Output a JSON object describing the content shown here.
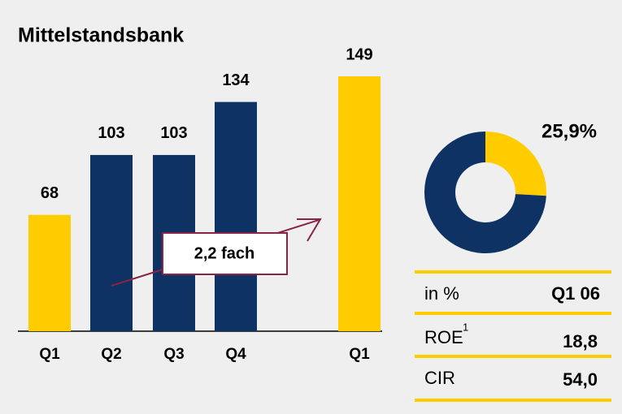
{
  "title": "Mittelstandsbank",
  "chart_data": [
    {
      "type": "bar",
      "categories": [
        "Q1",
        "Q2",
        "Q3",
        "Q4",
        "Q1"
      ],
      "values": [
        68,
        103,
        103,
        134,
        149
      ],
      "colors": [
        "#ffcc00",
        "#0e3263",
        "#0e3263",
        "#0e3263",
        "#ffcc00"
      ],
      "annotation": "2,2 fach"
    },
    {
      "type": "pie",
      "donut": true,
      "values": [
        25.9,
        74.1
      ],
      "value_labels": [
        "25,9%",
        null
      ],
      "colors": [
        "#ffcc00",
        "#0e3263"
      ]
    }
  ],
  "table": {
    "header": [
      "in %",
      "Q1 06"
    ],
    "rows": [
      {
        "label": "ROE",
        "note": "1",
        "value": "18,8"
      },
      {
        "label": "CIR",
        "value": "54,0"
      }
    ]
  }
}
